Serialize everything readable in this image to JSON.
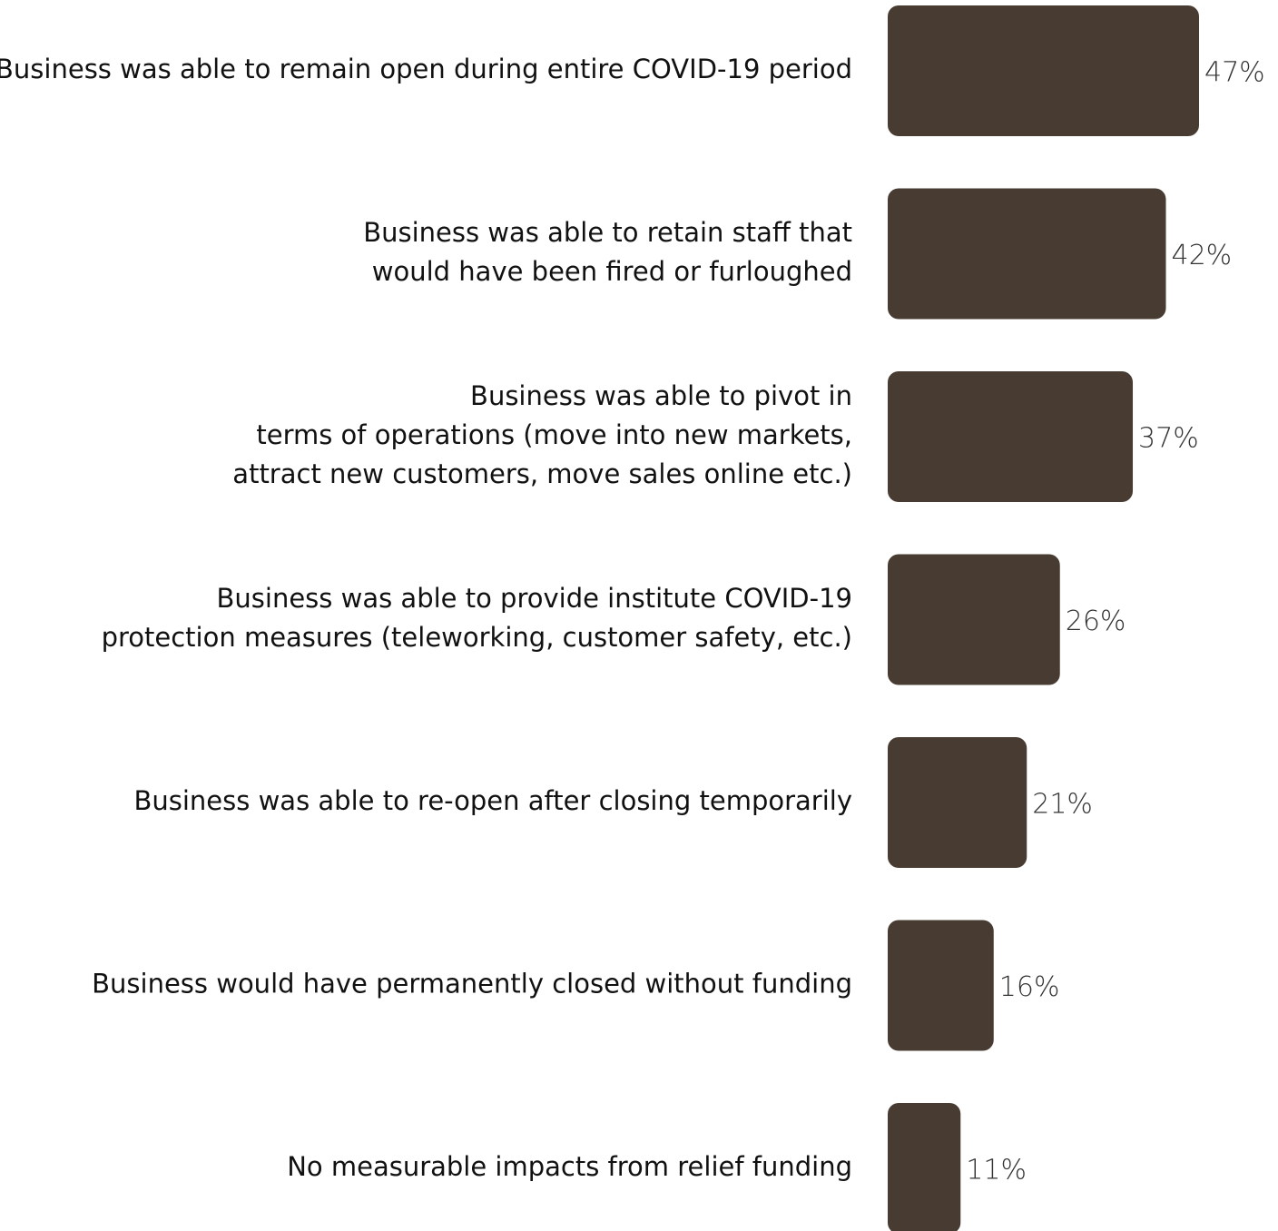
{
  "chart_data": {
    "type": "bar",
    "orientation": "horizontal",
    "title": "",
    "xlabel": "",
    "ylabel": "",
    "xlim": [
      0,
      47
    ],
    "grid": false,
    "legend": "none",
    "bar_color": "#483C32",
    "categories": [
      [
        "Business was able to remain open during entire COVID-19 period"
      ],
      [
        "Business was able to retain staff that",
        "would have been fired or furloughed"
      ],
      [
        "Business was able to pivot in",
        "terms of operations (move into new markets,",
        "attract new customers, move sales online etc.)"
      ],
      [
        "Business was able to provide institute COVID-19",
        "protection measures (teleworking, customer safety, etc.)"
      ],
      [
        "Business was able to re-open after closing temporarily"
      ],
      [
        "Business would have permanently closed without funding"
      ],
      [
        "No measurable impacts from relief funding"
      ]
    ],
    "values": [
      47,
      42,
      37,
      26,
      21,
      16,
      11
    ],
    "value_labels": [
      "47%",
      "42%",
      "37%",
      "26%",
      "21%",
      "16%",
      "11%"
    ]
  }
}
